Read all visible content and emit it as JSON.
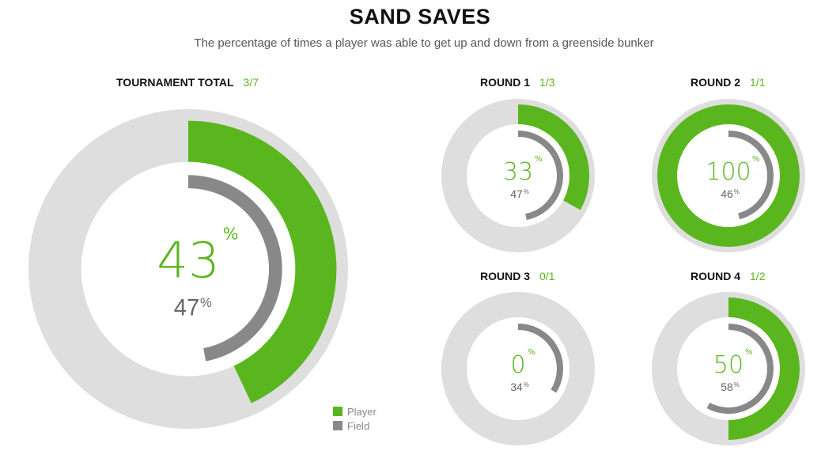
{
  "header": {
    "title": "SAND SAVES",
    "subtitle": "The percentage of times a player was able to get up and down from a greenside bunker"
  },
  "colors": {
    "player": "#5ab61e",
    "field": "#888888",
    "track": "#dedede",
    "center": "#ffffff"
  },
  "legend": {
    "player_label": "Player",
    "field_label": "Field"
  },
  "chart_data": [
    {
      "type": "pie",
      "name": "TOURNAMENT TOTAL",
      "ratio": "3/7",
      "player_pct": 43,
      "field_pct": 47,
      "player_label": "43",
      "field_label": "47"
    },
    {
      "type": "pie",
      "name": "ROUND 1",
      "ratio": "1/3",
      "player_pct": 33,
      "field_pct": 47,
      "player_label": "33",
      "field_label": "47"
    },
    {
      "type": "pie",
      "name": "ROUND 2",
      "ratio": "1/1",
      "player_pct": 100,
      "field_pct": 46,
      "player_label": "100",
      "field_label": "46"
    },
    {
      "type": "pie",
      "name": "ROUND 3",
      "ratio": "0/1",
      "player_pct": 0,
      "field_pct": 34,
      "player_label": "0",
      "field_label": "34"
    },
    {
      "type": "pie",
      "name": "ROUND 4",
      "ratio": "1/2",
      "player_pct": 50,
      "field_pct": 58,
      "player_label": "50",
      "field_label": "58"
    }
  ]
}
